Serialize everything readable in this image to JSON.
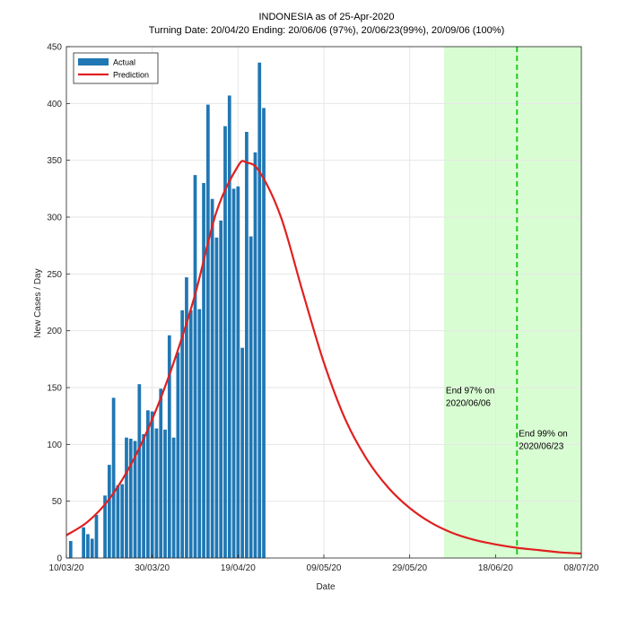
{
  "chart_data": {
    "type": "bar",
    "title": "INDONESIA as of 25-Apr-2020",
    "subtitle": "Turning Date: 20/04/20  Ending: 20/06/06 (97%), 20/06/23(99%), 20/09/06 (100%)",
    "xlabel": "Date",
    "ylabel": "New Cases / Day",
    "ylim": [
      0,
      450
    ],
    "yticks": [
      0,
      50,
      100,
      150,
      200,
      250,
      300,
      350,
      400,
      450
    ],
    "xlim": [
      "2020-03-10",
      "2020-07-08"
    ],
    "xticks": [
      {
        "date": "2020-03-10",
        "label": "10/03/20"
      },
      {
        "date": "2020-03-30",
        "label": "30/03/20"
      },
      {
        "date": "2020-04-19",
        "label": "19/04/20"
      },
      {
        "date": "2020-05-09",
        "label": "09/05/20"
      },
      {
        "date": "2020-05-29",
        "label": "29/05/20"
      },
      {
        "date": "2020-06-18",
        "label": "18/06/20"
      },
      {
        "date": "2020-07-08",
        "label": "08/07/20"
      }
    ],
    "grid": true,
    "legend": {
      "placement": "top-left",
      "entries": [
        {
          "name": "Actual",
          "color": "#1f77b4"
        },
        {
          "name": "Prediction",
          "color": "#e02020"
        }
      ]
    },
    "series": [
      {
        "name": "Actual",
        "type": "bar",
        "color": "#1f77b4",
        "x": [
          "2020-03-11",
          "2020-03-12",
          "2020-03-13",
          "2020-03-14",
          "2020-03-15",
          "2020-03-16",
          "2020-03-17",
          "2020-03-18",
          "2020-03-19",
          "2020-03-20",
          "2020-03-21",
          "2020-03-22",
          "2020-03-23",
          "2020-03-24",
          "2020-03-25",
          "2020-03-26",
          "2020-03-27",
          "2020-03-28",
          "2020-03-29",
          "2020-03-30",
          "2020-03-31",
          "2020-04-01",
          "2020-04-02",
          "2020-04-03",
          "2020-04-04",
          "2020-04-05",
          "2020-04-06",
          "2020-04-07",
          "2020-04-08",
          "2020-04-09",
          "2020-04-10",
          "2020-04-11",
          "2020-04-12",
          "2020-04-13",
          "2020-04-14",
          "2020-04-15",
          "2020-04-16",
          "2020-04-17",
          "2020-04-18",
          "2020-04-19",
          "2020-04-20",
          "2020-04-21",
          "2020-04-22",
          "2020-04-23",
          "2020-04-24",
          "2020-04-25"
        ],
        "values": [
          15,
          0,
          0,
          27,
          21,
          17,
          38,
          0,
          55,
          82,
          141,
          64,
          65,
          106,
          105,
          103,
          153,
          109,
          130,
          129,
          114,
          149,
          113,
          196,
          106,
          181,
          218,
          247,
          218,
          337,
          219,
          330,
          399,
          316,
          282,
          297,
          380,
          407,
          325,
          327,
          185,
          375,
          283,
          357,
          436,
          396
        ]
      },
      {
        "name": "Prediction",
        "type": "line",
        "color": "#e02020",
        "x": [
          "2020-03-10",
          "2020-03-15",
          "2020-03-20",
          "2020-03-25",
          "2020-03-30",
          "2020-04-04",
          "2020-04-09",
          "2020-04-14",
          "2020-04-19",
          "2020-04-21",
          "2020-04-24",
          "2020-04-29",
          "2020-05-04",
          "2020-05-09",
          "2020-05-14",
          "2020-05-19",
          "2020-05-24",
          "2020-05-29",
          "2020-06-03",
          "2020-06-08",
          "2020-06-13",
          "2020-06-18",
          "2020-06-23",
          "2020-06-28",
          "2020-07-03",
          "2020-07-08"
        ],
        "values": [
          20,
          32,
          52,
          82,
          122,
          172,
          232,
          305,
          345,
          348,
          340,
          300,
          235,
          172,
          122,
          87,
          62,
          44,
          31,
          22,
          16,
          12,
          9,
          7,
          5,
          4
        ]
      }
    ],
    "shaded_region": {
      "from": "2020-06-06",
      "to": "2020-07-08",
      "color": "#d9fdd3"
    },
    "vertical_line": {
      "date": "2020-06-23",
      "color": "#22cc22",
      "style": "dashed"
    },
    "annotations": [
      {
        "text_lines": [
          "End 97% on",
          "2020/06/06"
        ],
        "x": "2020-06-06",
        "y": 145
      },
      {
        "text_lines": [
          "End 99% on",
          "2020/06/23"
        ],
        "x": "2020-06-23",
        "y": 107
      }
    ]
  }
}
